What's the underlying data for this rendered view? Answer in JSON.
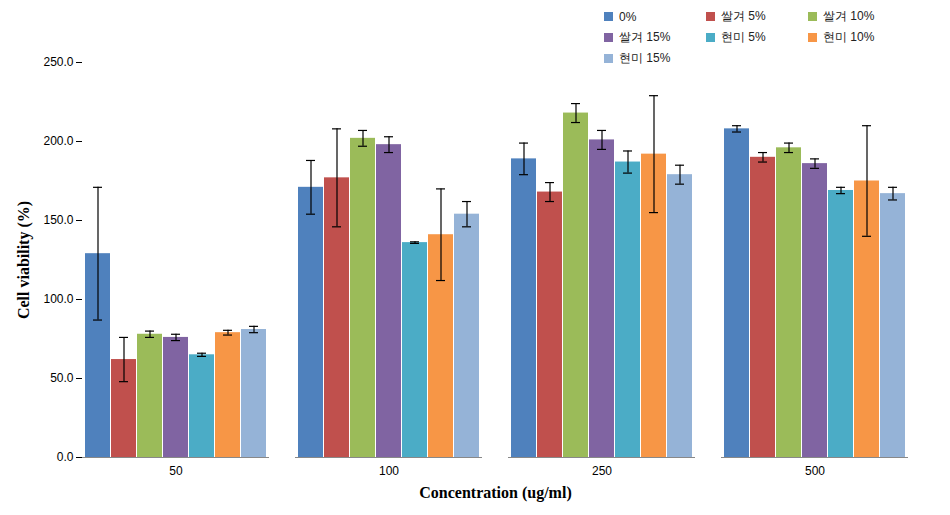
{
  "chart_data": {
    "type": "bar",
    "x_label": "Concentration (ug/ml)",
    "y_label": "Cell viability (%)",
    "categories": [
      "50",
      "100",
      "250",
      "500"
    ],
    "series": [
      {
        "name": "0%",
        "color": "#4F81BD",
        "values": [
          129,
          171,
          189,
          208
        ],
        "errors": [
          42,
          17,
          10,
          2
        ]
      },
      {
        "name": "쌀겨 5%",
        "color": "#C0504D",
        "values": [
          62,
          177,
          168,
          190
        ],
        "errors": [
          14,
          31,
          6,
          3
        ]
      },
      {
        "name": "쌀겨 10%",
        "color": "#9BBB59",
        "values": [
          78,
          202,
          218,
          196
        ],
        "errors": [
          2,
          5,
          6,
          3
        ]
      },
      {
        "name": "쌀겨 15%",
        "color": "#8064A2",
        "values": [
          76,
          198,
          201,
          186
        ],
        "errors": [
          2,
          5,
          6,
          3
        ]
      },
      {
        "name": "현미 5%",
        "color": "#4BACC6",
        "values": [
          65,
          136,
          187,
          169
        ],
        "errors": [
          1,
          0.5,
          7,
          2
        ]
      },
      {
        "name": "현미 10%",
        "color": "#F79646",
        "values": [
          79,
          141,
          192,
          175
        ],
        "errors": [
          1.5,
          29,
          37,
          35
        ]
      },
      {
        "name": "현미 15%",
        "color": "#95B3D7",
        "values": [
          81,
          154,
          179,
          167
        ],
        "errors": [
          2,
          8,
          6,
          4
        ]
      }
    ],
    "ylim": [
      0,
      250
    ],
    "yticks": [
      {
        "value": 0,
        "label": "0.0"
      },
      {
        "value": 50,
        "label": "50.0"
      },
      {
        "value": 100,
        "label": "100.0"
      },
      {
        "value": 150,
        "label": "150.0"
      },
      {
        "value": 200,
        "label": "200.0"
      },
      {
        "value": 250,
        "label": "250.0"
      }
    ],
    "grid": false,
    "legend": "top-right"
  }
}
